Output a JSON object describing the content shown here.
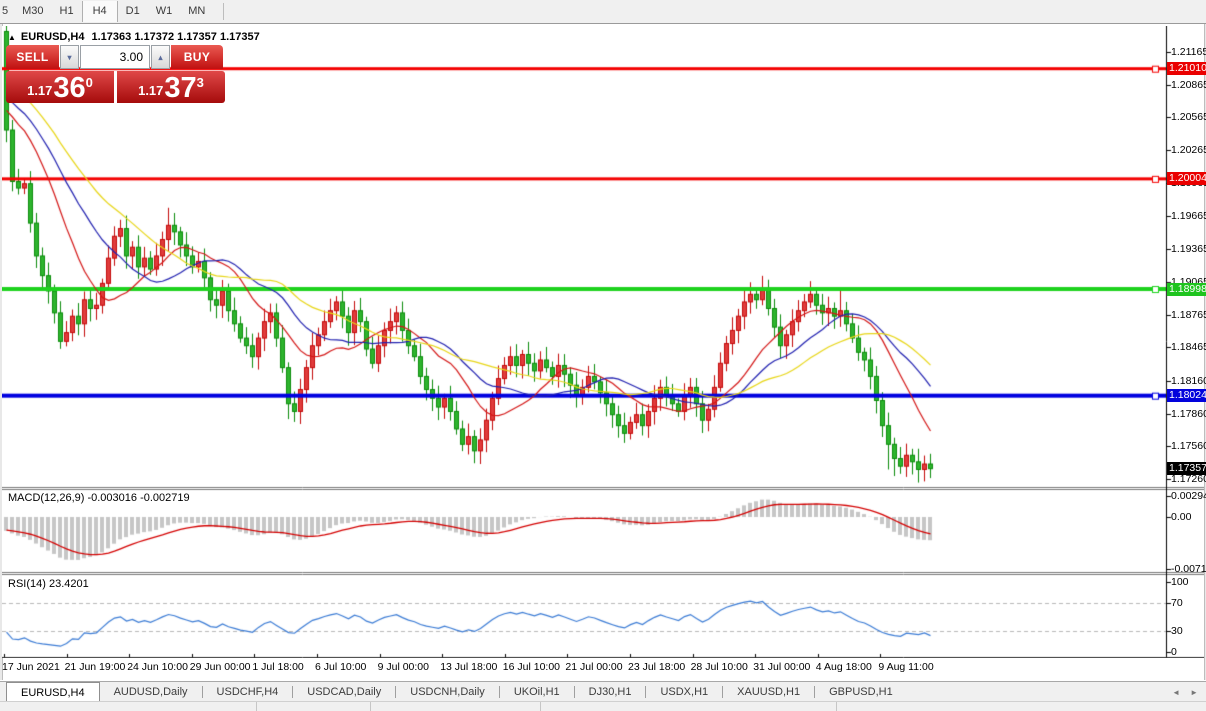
{
  "toolbar": {
    "timeframes": [
      "5",
      "M30",
      "H1",
      "H4",
      "D1",
      "W1",
      "MN"
    ],
    "active": "H4"
  },
  "chart_header": {
    "collapse_icon": "▲",
    "symbol": "EURUSD,H4",
    "ohlc_text": "1.17363 1.17372 1.17357 1.17357"
  },
  "trade_panel": {
    "sell_label": "SELL",
    "buy_label": "BUY",
    "volume": "3.00",
    "spinner_down": "▾",
    "spinner_up": "▴",
    "sell_price": {
      "prefix": "1.17",
      "big": "36",
      "sup": "0"
    },
    "buy_price": {
      "prefix": "1.17",
      "big": "37",
      "sup": "3"
    }
  },
  "price_scale": {
    "ticks": [
      "1.21165",
      "1.20865",
      "1.20565",
      "1.20265",
      "1.19965",
      "1.19665",
      "1.19365",
      "1.19065",
      "1.18765",
      "1.18465",
      "1.18160",
      "1.17860",
      "1.17560",
      "1.17260"
    ],
    "badges": [
      {
        "text": "1.21010",
        "color": "#ea0000"
      },
      {
        "text": "1.20004",
        "color": "#ea0000"
      },
      {
        "text": "1.18998",
        "color": "#1fc41f"
      },
      {
        "text": "1.18024",
        "color": "#0202dc"
      },
      {
        "text": "1.17357",
        "color": "#000000"
      }
    ]
  },
  "indicators": {
    "macd": {
      "label": "MACD(12,26,9) -0.003016 -0.002719",
      "fast": 12,
      "slow": 26,
      "signal": 9,
      "values_text": [
        "-0.003016",
        "-0.002719"
      ],
      "scale_labels": [
        "0.002947",
        "0.00",
        "-0.00715"
      ],
      "scale_values": [
        0.002947,
        0,
        -0.00715
      ],
      "histogram_color": "#c6c6c6",
      "signal_color": "#d40000"
    },
    "rsi": {
      "label": "RSI(14) 23.4201",
      "period": 14,
      "last_value": 23.4201,
      "scale_labels": [
        "100",
        "70",
        "30",
        "0"
      ],
      "scale_values": [
        100,
        70,
        30,
        0
      ],
      "level_lines": [
        70,
        30
      ],
      "line_color": "#3a7bd5"
    }
  },
  "time_axis": {
    "labels": [
      "17 Jun 2021",
      "21 Jun 19:00",
      "24 Jun 10:00",
      "29 Jun 00:00",
      "1 Jul 18:00",
      "6 Jul 10:00",
      "9 Jul 00:00",
      "13 Jul 18:00",
      "16 Jul 10:00",
      "21 Jul 00:00",
      "23 Jul 18:00",
      "28 Jul 10:00",
      "31 Jul 00:00",
      "4 Aug 18:00",
      "9 Aug 11:00"
    ]
  },
  "tabs": {
    "items": [
      "EURUSD,H4",
      "AUDUSD,Daily",
      "USDCHF,H4",
      "USDCAD,Daily",
      "USDCNH,Daily",
      "UKOil,H1",
      "DJ30,H1",
      "USDX,H1",
      "XAUUSD,H1",
      "GBPUSD,H1"
    ],
    "active": "EURUSD,H4",
    "scroll_left": "◄",
    "scroll_right": "►"
  },
  "chart_data": {
    "type": "candlestick",
    "symbol": "EURUSD",
    "timeframe": "H4",
    "current_ohlc": {
      "open": 1.17363,
      "high": 1.17372,
      "low": 1.17357,
      "close": 1.17357
    },
    "ylim": [
      1.1719,
      1.214
    ],
    "up_color": "#e03c3c",
    "up_border": "#c40808",
    "down_color": "#2eb42e",
    "down_border": "#0a8c0a",
    "time_labels": [
      "17 Jun 2021",
      "21 Jun 19:00",
      "24 Jun 10:00",
      "29 Jun 00:00",
      "1 Jul 18:00",
      "6 Jul 10:00",
      "9 Jul 00:00",
      "13 Jul 18:00",
      "16 Jul 10:00",
      "21 Jul 00:00",
      "23 Jul 18:00",
      "28 Jul 10:00",
      "31 Jul 00:00",
      "4 Aug 18:00",
      "9 Aug 11:00"
    ],
    "first_open": 1.2135,
    "closes": [
      1.2045,
      1.1998,
      1.1992,
      1.1996,
      1.196,
      1.193,
      1.1912,
      1.1898,
      1.1878,
      1.1852,
      1.186,
      1.1875,
      1.1868,
      1.189,
      1.1882,
      1.1885,
      1.1905,
      1.1928,
      1.1948,
      1.1955,
      1.193,
      1.1938,
      1.192,
      1.1928,
      1.1918,
      1.193,
      1.1945,
      1.1958,
      1.1952,
      1.194,
      1.193,
      1.192,
      1.1925,
      1.191,
      1.189,
      1.1885,
      1.1898,
      1.188,
      1.1868,
      1.1855,
      1.1848,
      1.1838,
      1.1855,
      1.187,
      1.1878,
      1.1855,
      1.1828,
      1.1795,
      1.1788,
      1.1808,
      1.1828,
      1.1848,
      1.1858,
      1.187,
      1.188,
      1.1888,
      1.1875,
      1.186,
      1.188,
      1.187,
      1.1845,
      1.1832,
      1.1848,
      1.1862,
      1.187,
      1.1878,
      1.1862,
      1.1848,
      1.1838,
      1.182,
      1.1808,
      1.18,
      1.1792,
      1.18,
      1.1788,
      1.1772,
      1.1758,
      1.1765,
      1.1752,
      1.1762,
      1.178,
      1.18,
      1.1818,
      1.183,
      1.1838,
      1.183,
      1.184,
      1.1832,
      1.1825,
      1.1835,
      1.1828,
      1.182,
      1.183,
      1.1822,
      1.1812,
      1.1802,
      1.181,
      1.182,
      1.1815,
      1.1805,
      1.1795,
      1.1785,
      1.1775,
      1.1768,
      1.1778,
      1.1785,
      1.1775,
      1.1788,
      1.18,
      1.181,
      1.1802,
      1.1795,
      1.1788,
      1.1802,
      1.181,
      1.1795,
      1.178,
      1.179,
      1.181,
      1.1832,
      1.185,
      1.1862,
      1.1875,
      1.1888,
      1.1895,
      1.189,
      1.19,
      1.1882,
      1.1865,
      1.1848,
      1.1858,
      1.187,
      1.188,
      1.1888,
      1.1895,
      1.1885,
      1.1878,
      1.1882,
      1.1875,
      1.188,
      1.1868,
      1.1855,
      1.1842,
      1.1835,
      1.182,
      1.1798,
      1.1775,
      1.1758,
      1.1745,
      1.1738,
      1.1748,
      1.1742,
      1.1735,
      1.174,
      1.17357
    ],
    "wick_overrides": {
      "0": {
        "low": 1.2038
      },
      "27": {
        "high": 1.1974
      },
      "47": {
        "low": 1.1781
      },
      "78": {
        "low": 1.1746
      },
      "126": {
        "high": 1.1908
      },
      "139": {
        "high": 1.1899
      },
      "147": {
        "low": 1.1735
      },
      "148": {
        "low": 1.1729
      },
      "152": {
        "low": 1.1727
      }
    },
    "moving_averages": [
      {
        "period": 13,
        "color": "#d41616"
      },
      {
        "period": 21,
        "color": "#2020b0"
      },
      {
        "period": 30,
        "color": "#e8d616"
      }
    ],
    "horizontal_levels": [
      {
        "price": 1.2101,
        "color": "#f40000",
        "width": 3
      },
      {
        "price": 1.20004,
        "color": "#f40000",
        "width": 3
      },
      {
        "price": 1.18998,
        "color": "#1ed21e",
        "width": 4
      },
      {
        "price": 1.18024,
        "color": "#0000e0",
        "width": 4
      }
    ]
  }
}
